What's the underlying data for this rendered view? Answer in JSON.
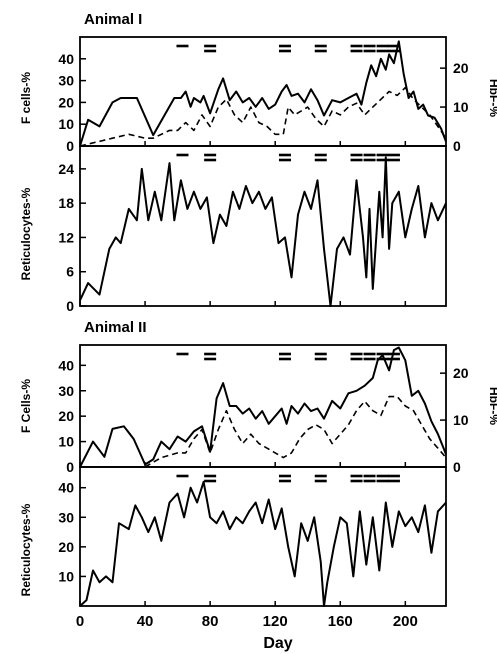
{
  "chart_data": [
    {
      "type": "line",
      "title": "Animal I",
      "xlabel": "Day",
      "ylabel": "F cells-%",
      "ylabel_right": "HbF-%",
      "xlim": [
        0,
        225
      ],
      "ylim": [
        0,
        50
      ],
      "yticks": [
        0,
        10,
        20,
        30,
        40
      ],
      "ylim_right": [
        0,
        28
      ],
      "yticks_right": [
        0,
        10,
        20
      ],
      "treatment_bars": [
        {
          "day": 63,
          "rows": 1
        },
        {
          "day": 80,
          "rows": 2
        },
        {
          "day": 126,
          "rows": 2
        },
        {
          "day": 148,
          "rows": 2
        },
        {
          "day": 170,
          "rows": 2
        },
        {
          "day": 178,
          "rows": 2
        },
        {
          "day": 186,
          "rows": 2
        },
        {
          "day": 193,
          "rows": 2
        }
      ],
      "series": [
        {
          "axis": "left",
          "style": "solid",
          "x": [
            0,
            5,
            12,
            20,
            25,
            35,
            45,
            58,
            62,
            65,
            68,
            70,
            74,
            76,
            80,
            85,
            88,
            92,
            96,
            100,
            104,
            108,
            112,
            116,
            120,
            124,
            127,
            130,
            134,
            138,
            142,
            146,
            150,
            155,
            160,
            165,
            170,
            173,
            176,
            179,
            182,
            185,
            188,
            190,
            193,
            196,
            199,
            202,
            205,
            208,
            211,
            214,
            218,
            222,
            225
          ],
          "y": [
            0,
            12,
            9,
            20,
            22,
            22,
            5,
            22,
            22,
            25,
            18,
            22,
            20,
            23,
            15,
            26,
            31,
            21,
            25,
            20,
            22,
            18,
            22,
            17,
            19,
            25,
            28,
            23,
            24,
            20,
            26,
            21,
            14,
            21,
            20,
            22,
            24,
            19,
            29,
            37,
            32,
            40,
            35,
            42,
            38,
            48,
            33,
            22,
            25,
            17,
            19,
            14,
            13,
            8,
            2
          ]
        },
        {
          "axis": "right",
          "style": "dashed",
          "x": [
            0,
            10,
            20,
            30,
            40,
            45,
            55,
            60,
            65,
            70,
            75,
            80,
            85,
            90,
            95,
            100,
            105,
            110,
            115,
            120,
            125,
            128,
            132,
            136,
            140,
            145,
            150,
            155,
            160,
            165,
            170,
            175,
            180,
            185,
            190,
            195,
            200,
            205,
            210,
            215,
            220,
            225
          ],
          "y": [
            0,
            1,
            2,
            3,
            2,
            2,
            4,
            4,
            6,
            4,
            8,
            5,
            10,
            12,
            8,
            6,
            10,
            6,
            5,
            3,
            3,
            10,
            8,
            9,
            10,
            7,
            5,
            9,
            8,
            10,
            11,
            8,
            10,
            12,
            14,
            13,
            15,
            12,
            10,
            8,
            5,
            2
          ]
        }
      ]
    },
    {
      "type": "line",
      "ylabel": "Reticulocytes-%",
      "xlabel": "Day",
      "xlim": [
        0,
        225
      ],
      "ylim": [
        0,
        28
      ],
      "yticks": [
        0,
        6,
        12,
        18,
        24
      ],
      "treatment_bars": [
        {
          "day": 63,
          "rows": 1
        },
        {
          "day": 80,
          "rows": 2
        },
        {
          "day": 126,
          "rows": 2
        },
        {
          "day": 148,
          "rows": 2
        },
        {
          "day": 170,
          "rows": 2
        },
        {
          "day": 178,
          "rows": 2
        },
        {
          "day": 186,
          "rows": 2
        },
        {
          "day": 193,
          "rows": 2
        }
      ],
      "series": [
        {
          "axis": "left",
          "style": "solid",
          "x": [
            0,
            5,
            12,
            18,
            22,
            25,
            30,
            35,
            38,
            42,
            46,
            50,
            55,
            58,
            62,
            66,
            70,
            74,
            78,
            82,
            86,
            90,
            94,
            98,
            102,
            106,
            110,
            114,
            118,
            122,
            126,
            130,
            134,
            138,
            142,
            146,
            150,
            154,
            158,
            162,
            166,
            170,
            174,
            176,
            178,
            180,
            184,
            186,
            188,
            190,
            192,
            196,
            200,
            204,
            208,
            212,
            216,
            220,
            225
          ],
          "y": [
            1,
            4,
            2,
            10,
            12,
            11,
            17,
            15,
            24,
            15,
            20,
            15,
            25,
            15,
            22,
            17,
            20,
            17,
            19,
            11,
            16,
            14,
            20,
            17,
            21,
            18,
            20,
            17,
            19,
            11,
            12,
            5,
            16,
            20,
            17,
            22,
            10,
            0,
            10,
            12,
            9,
            22,
            12,
            5,
            17,
            3,
            20,
            12,
            26,
            10,
            18,
            20,
            12,
            17,
            21,
            12,
            18,
            15,
            18
          ]
        }
      ]
    },
    {
      "type": "line",
      "title": "Animal II",
      "xlabel": "Day",
      "ylabel": "F Cells-%",
      "ylabel_right": "HbF-%",
      "xlim": [
        0,
        225
      ],
      "ylim": [
        0,
        48
      ],
      "yticks": [
        0,
        10,
        20,
        30,
        40
      ],
      "ylim_right": [
        0,
        26
      ],
      "yticks_right": [
        0,
        10,
        20
      ],
      "treatment_bars": [
        {
          "day": 63,
          "rows": 1
        },
        {
          "day": 80,
          "rows": 2
        },
        {
          "day": 126,
          "rows": 2
        },
        {
          "day": 148,
          "rows": 2
        },
        {
          "day": 170,
          "rows": 2
        },
        {
          "day": 178,
          "rows": 2
        },
        {
          "day": 186,
          "rows": 2
        },
        {
          "day": 193,
          "rows": 2
        }
      ],
      "series": [
        {
          "axis": "left",
          "style": "solid",
          "x": [
            0,
            8,
            15,
            20,
            27,
            33,
            40,
            45,
            50,
            55,
            60,
            65,
            70,
            75,
            80,
            84,
            88,
            92,
            96,
            100,
            104,
            108,
            112,
            116,
            120,
            124,
            127,
            130,
            134,
            138,
            142,
            146,
            150,
            155,
            160,
            165,
            170,
            175,
            180,
            183,
            186,
            190,
            193,
            196,
            200,
            204,
            208,
            212,
            216,
            220,
            225
          ],
          "y": [
            0,
            10,
            4,
            15,
            16,
            11,
            1,
            3,
            10,
            7,
            12,
            10,
            14,
            16,
            6,
            27,
            33,
            24,
            24,
            21,
            23,
            19,
            22,
            17,
            20,
            23,
            17,
            24,
            21,
            25,
            22,
            23,
            19,
            26,
            23,
            29,
            30,
            32,
            35,
            42,
            44,
            38,
            46,
            47,
            42,
            28,
            30,
            25,
            18,
            13,
            5
          ]
        },
        {
          "axis": "right",
          "style": "dashed",
          "x": [
            40,
            50,
            60,
            65,
            70,
            75,
            80,
            85,
            90,
            95,
            100,
            105,
            110,
            115,
            120,
            125,
            130,
            135,
            140,
            145,
            150,
            155,
            160,
            165,
            170,
            175,
            180,
            185,
            190,
            195,
            200,
            205,
            210,
            215,
            220,
            225
          ],
          "y": [
            0,
            2,
            3,
            3,
            6,
            8,
            3,
            8,
            12,
            8,
            5,
            7,
            5,
            4,
            3,
            2,
            3,
            6,
            8,
            9,
            8,
            5,
            7,
            9,
            12,
            14,
            12,
            11,
            15,
            15,
            13,
            12,
            9,
            6,
            4,
            2
          ]
        }
      ]
    },
    {
      "type": "line",
      "ylabel": "Reticulocytes-%",
      "xlabel": "Day",
      "xlim": [
        0,
        225
      ],
      "ylim": [
        0,
        47
      ],
      "yticks": [
        10,
        20,
        30,
        40
      ],
      "xticks": [
        0,
        40,
        80,
        120,
        160,
        200
      ],
      "treatment_bars": [
        {
          "day": 63,
          "rows": 1
        },
        {
          "day": 80,
          "rows": 2
        },
        {
          "day": 126,
          "rows": 2
        },
        {
          "day": 148,
          "rows": 2
        },
        {
          "day": 170,
          "rows": 2
        },
        {
          "day": 178,
          "rows": 2
        },
        {
          "day": 186,
          "rows": 2
        },
        {
          "day": 193,
          "rows": 2
        }
      ],
      "series": [
        {
          "axis": "left",
          "style": "solid",
          "x": [
            0,
            4,
            8,
            12,
            16,
            20,
            24,
            30,
            34,
            38,
            42,
            46,
            50,
            55,
            60,
            64,
            68,
            72,
            76,
            80,
            84,
            88,
            92,
            96,
            100,
            104,
            108,
            112,
            116,
            120,
            124,
            128,
            132,
            136,
            140,
            144,
            148,
            150,
            152,
            156,
            160,
            164,
            168,
            172,
            176,
            180,
            184,
            188,
            192,
            196,
            200,
            204,
            208,
            212,
            216,
            220,
            225
          ],
          "y": [
            0,
            2,
            12,
            8,
            10,
            8,
            28,
            26,
            34,
            30,
            25,
            30,
            22,
            35,
            38,
            30,
            40,
            35,
            42,
            30,
            28,
            32,
            26,
            30,
            28,
            32,
            35,
            28,
            36,
            26,
            33,
            20,
            10,
            28,
            22,
            30,
            15,
            0,
            8,
            20,
            30,
            28,
            10,
            32,
            14,
            30,
            12,
            35,
            20,
            32,
            27,
            30,
            25,
            34,
            18,
            32,
            35
          ]
        }
      ]
    }
  ]
}
